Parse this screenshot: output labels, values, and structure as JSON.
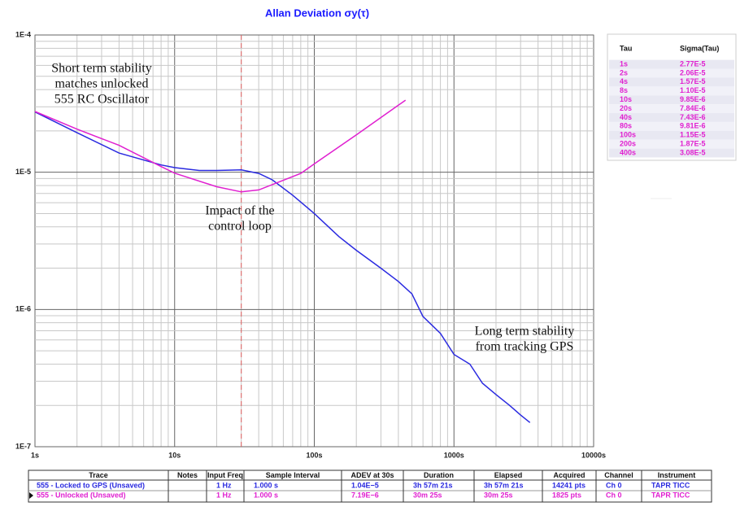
{
  "chart_data": {
    "type": "line",
    "title": "Allan Deviation σy(τ)",
    "xscale": "log",
    "yscale": "log",
    "grid": true,
    "xlim": [
      1,
      10000
    ],
    "ylim": [
      1e-07,
      0.0001
    ],
    "xticks": [
      {
        "value": 1,
        "label": "1s"
      },
      {
        "value": 10,
        "label": "10s"
      },
      {
        "value": 100,
        "label": "100s"
      },
      {
        "value": 1000,
        "label": "1000s"
      },
      {
        "value": 10000,
        "label": "10000s"
      }
    ],
    "yticks": [
      {
        "value": 1e-07,
        "label": "1E-7"
      },
      {
        "value": 1e-06,
        "label": "1E-6"
      },
      {
        "value": 1e-05,
        "label": "1E-5"
      },
      {
        "value": 0.0001,
        "label": "1E-4"
      }
    ],
    "marker_x": 30,
    "marker_color": "#e06060",
    "series": [
      {
        "name": "555 - Locked to GPS (Unsaved)",
        "color": "#2a2ae0",
        "x": [
          1,
          2,
          4,
          8,
          10,
          15,
          20,
          30,
          40,
          50,
          70,
          100,
          150,
          200,
          300,
          400,
          500,
          600,
          800,
          1000,
          1300,
          1600,
          2000,
          2500,
          3000,
          3500
        ],
        "values": [
          2.75e-05,
          1.94e-05,
          1.38e-05,
          1.13e-05,
          1.08e-05,
          1.03e-05,
          1.03e-05,
          1.04e-05,
          9.8e-06,
          8.8e-06,
          6.8e-06,
          5e-06,
          3.4e-06,
          2.7e-06,
          2e-06,
          1.6e-06,
          1.3e-06,
          8.9e-07,
          6.7e-07,
          4.7e-07,
          4e-07,
          2.9e-07,
          2.4e-07,
          2e-07,
          1.7e-07,
          1.5e-07
        ]
      },
      {
        "name": "555 - Unlocked (Unsaved)",
        "color": "#e020d0",
        "x": [
          1,
          2,
          4,
          8,
          10,
          20,
          30,
          40,
          80,
          100,
          200,
          400,
          450
        ],
        "values": [
          2.77e-05,
          2.06e-05,
          1.57e-05,
          1.1e-05,
          9.85e-06,
          7.84e-06,
          7.19e-06,
          7.43e-06,
          9.81e-06,
          1.15e-05,
          1.87e-05,
          3.08e-05,
          3.35e-05
        ]
      }
    ],
    "annotations": [
      {
        "lines": [
          "Short term stability",
          "matches unlocked",
          "555 RC Oscillator"
        ]
      },
      {
        "lines": [
          "Impact of the",
          "control loop"
        ]
      },
      {
        "lines": [
          "Long term stability",
          "from tracking GPS"
        ]
      }
    ]
  },
  "side_table": {
    "columns": [
      "Tau",
      "Sigma(Tau)"
    ],
    "rows": [
      [
        "1s",
        "2.77E-5"
      ],
      [
        "2s",
        "2.06E-5"
      ],
      [
        "4s",
        "1.57E-5"
      ],
      [
        "8s",
        "1.10E-5"
      ],
      [
        "10s",
        "9.85E-6"
      ],
      [
        "20s",
        "7.84E-6"
      ],
      [
        "40s",
        "7.43E-6"
      ],
      [
        "80s",
        "9.81E-6"
      ],
      [
        "100s",
        "1.15E-5"
      ],
      [
        "200s",
        "1.87E-5"
      ],
      [
        "400s",
        "3.08E-5"
      ]
    ]
  },
  "trace_table": {
    "columns": [
      "Trace",
      "Notes",
      "Input Freq",
      "Sample Interval",
      "ADEV at 30s",
      "Duration",
      "Elapsed",
      "Acquired",
      "Channel",
      "Instrument"
    ],
    "rows": [
      [
        "555 - Locked to GPS (Unsaved)",
        null,
        "1 Hz",
        "1.000 s",
        "1.04E−5",
        "3h 57m 21s",
        "3h 57m 21s",
        "14241 pts",
        "Ch 0",
        "TAPR TICC"
      ],
      [
        "555 - Unlocked (Unsaved)",
        null,
        "1 Hz",
        "1.000 s",
        "7.19E−6",
        "30m 25s",
        "30m 25s",
        "1825 pts",
        "Ch 0",
        "TAPR TICC"
      ]
    ]
  }
}
